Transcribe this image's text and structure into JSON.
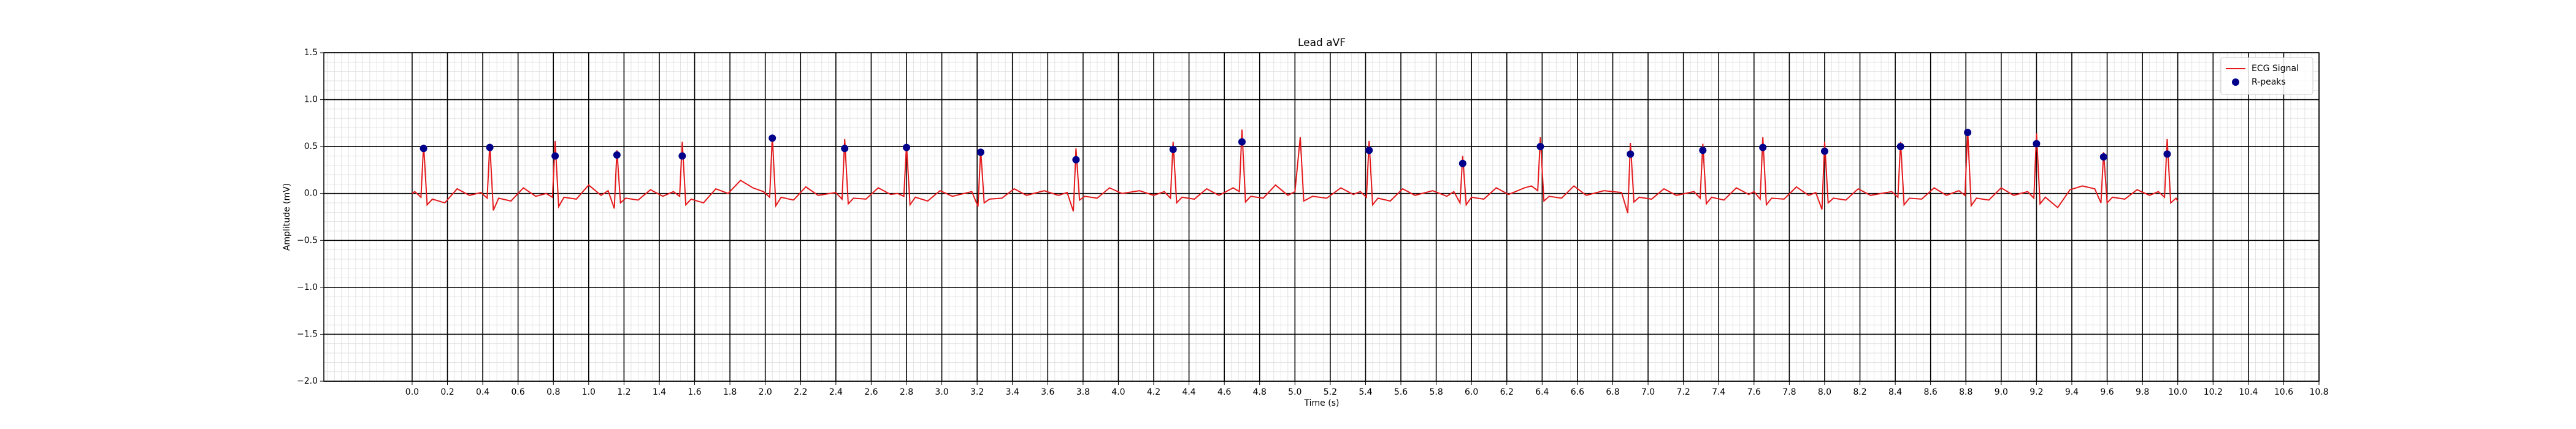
{
  "chart_data": {
    "type": "line",
    "title": "Lead aVF",
    "x_label": "Time (s)",
    "y_label": "Amplitude (mV)",
    "xlim": [
      -0.5,
      10.8
    ],
    "ylim": [
      -2.0,
      1.5
    ],
    "xticks": [
      {
        "value": 0,
        "label": "0.0"
      },
      0.2,
      0.4,
      0.6,
      0.8,
      {
        "value": 1,
        "label": "1.0"
      },
      1.2,
      1.4,
      1.6,
      1.8,
      {
        "value": 2,
        "label": "2.0"
      },
      2.2,
      2.4,
      2.6,
      2.8,
      {
        "value": 3,
        "label": "3.0"
      },
      3.2,
      3.4,
      3.6,
      3.8,
      {
        "value": 4,
        "label": "4.0"
      },
      4.2,
      4.4,
      4.6,
      4.8,
      {
        "value": 5,
        "label": "5.0"
      },
      5.2,
      5.4,
      5.6,
      5.8,
      {
        "value": 6,
        "label": "6.0"
      },
      6.2,
      6.4,
      6.6,
      6.8,
      {
        "value": 7,
        "label": "7.0"
      },
      7.2,
      7.4,
      7.6,
      7.8,
      {
        "value": 8,
        "label": "8.0"
      },
      8.2,
      8.4,
      8.6,
      8.8,
      {
        "value": 9,
        "label": "9.0"
      },
      9.2,
      9.4,
      9.6,
      9.8,
      {
        "value": 10,
        "label": "10.0"
      },
      10.2,
      10.4,
      10.6,
      10.8
    ],
    "yticks": [
      1.5,
      {
        "value": 1,
        "label": "1.0"
      },
      0.5,
      {
        "value": 0,
        "label": "0.0"
      },
      {
        "value": -0.5,
        "label": "−0.5"
      },
      {
        "value": -1,
        "label": "−1.0"
      },
      {
        "value": -1.5,
        "label": "−1.5"
      },
      {
        "value": -2,
        "label": "−2.0"
      }
    ],
    "grid": true,
    "minor_grid": true,
    "legend": "upper right",
    "series": [
      {
        "name": "ECG Signal",
        "color": "#e41a1c",
        "type": "line",
        "x": [
          0,
          0.015,
          0.05,
          0.065,
          0.085,
          0.115,
          0.185,
          0.255,
          0.325,
          0.39,
          0.425,
          0.44,
          0.46,
          0.49,
          0.56,
          0.63,
          0.7,
          0.76,
          0.795,
          0.81,
          0.83,
          0.86,
          0.93,
          1.0,
          1.07,
          1.11,
          1.145,
          1.16,
          1.18,
          1.21,
          1.28,
          1.35,
          1.42,
          1.48,
          1.515,
          1.53,
          1.55,
          1.58,
          1.65,
          1.72,
          1.79,
          1.86,
          1.93,
          1.99,
          2.025,
          2.04,
          2.06,
          2.09,
          2.16,
          2.23,
          2.3,
          2.4,
          2.435,
          2.45,
          2.47,
          2.5,
          2.57,
          2.64,
          2.71,
          2.75,
          2.785,
          2.8,
          2.82,
          2.85,
          2.92,
          2.99,
          3.06,
          3.17,
          3.205,
          3.22,
          3.24,
          3.27,
          3.34,
          3.41,
          3.48,
          3.58,
          3.66,
          3.71,
          3.745,
          3.76,
          3.78,
          3.81,
          3.88,
          3.95,
          4.02,
          4.12,
          4.2,
          4.26,
          4.295,
          4.31,
          4.33,
          4.36,
          4.43,
          4.5,
          4.57,
          4.65,
          4.685,
          4.7,
          4.72,
          4.75,
          4.82,
          4.89,
          4.96,
          5.0,
          5.03,
          5.05,
          5.1,
          5.18,
          5.26,
          5.33,
          5.37,
          5.405,
          5.42,
          5.44,
          5.47,
          5.54,
          5.61,
          5.68,
          5.78,
          5.86,
          5.9,
          5.935,
          5.95,
          5.97,
          6.0,
          6.07,
          6.14,
          6.21,
          6.3,
          6.34,
          6.375,
          6.39,
          6.41,
          6.44,
          6.51,
          6.58,
          6.65,
          6.75,
          6.85,
          6.885,
          6.9,
          6.92,
          6.95,
          7.02,
          7.09,
          7.16,
          7.26,
          7.295,
          7.31,
          7.33,
          7.36,
          7.43,
          7.5,
          7.57,
          7.6,
          7.635,
          7.65,
          7.67,
          7.7,
          7.77,
          7.84,
          7.91,
          7.95,
          7.985,
          8.0,
          8.02,
          8.05,
          8.12,
          8.19,
          8.26,
          8.38,
          8.415,
          8.43,
          8.45,
          8.48,
          8.55,
          8.62,
          8.69,
          8.76,
          8.795,
          8.81,
          8.83,
          8.86,
          8.93,
          9.0,
          9.07,
          9.15,
          9.185,
          9.2,
          9.22,
          9.25,
          9.32,
          9.39,
          9.46,
          9.53,
          9.565,
          9.58,
          9.6,
          9.63,
          9.7,
          9.77,
          9.84,
          9.89,
          9.925,
          9.94,
          9.96,
          9.99,
          10.0
        ],
        "values": [
          0,
          0.02,
          -0.04,
          0.52,
          -0.12,
          -0.06,
          -0.1,
          0.05,
          -0.02,
          0.01,
          -0.05,
          0.53,
          -0.18,
          -0.05,
          -0.08,
          0.06,
          -0.03,
          0.0,
          -0.04,
          0.56,
          -0.14,
          -0.04,
          -0.06,
          0.09,
          -0.02,
          0.03,
          -0.16,
          0.46,
          -0.1,
          -0.05,
          -0.07,
          0.04,
          -0.03,
          0.02,
          -0.03,
          0.55,
          -0.12,
          -0.06,
          -0.1,
          0.05,
          0.0,
          0.14,
          0.06,
          0.02,
          -0.04,
          0.61,
          -0.13,
          -0.04,
          -0.07,
          0.07,
          -0.02,
          0.01,
          -0.06,
          0.58,
          -0.11,
          -0.05,
          -0.06,
          0.06,
          -0.01,
          0.0,
          -0.03,
          0.52,
          -0.12,
          -0.04,
          -0.08,
          0.03,
          -0.03,
          0.02,
          -0.14,
          0.47,
          -0.1,
          -0.06,
          -0.05,
          0.05,
          -0.02,
          0.03,
          -0.02,
          0.01,
          -0.19,
          0.48,
          -0.07,
          -0.03,
          -0.05,
          0.06,
          0.0,
          0.03,
          -0.02,
          0.02,
          -0.05,
          0.55,
          -0.1,
          -0.04,
          -0.06,
          0.05,
          -0.02,
          0.06,
          0.02,
          0.68,
          -0.09,
          -0.03,
          -0.05,
          0.09,
          -0.02,
          0.02,
          0.6,
          -0.08,
          -0.03,
          -0.05,
          0.06,
          -0.01,
          0.02,
          -0.04,
          0.56,
          -0.12,
          -0.05,
          -0.08,
          0.05,
          -0.02,
          0.03,
          -0.03,
          0.02,
          -0.1,
          0.4,
          -0.12,
          -0.04,
          -0.06,
          0.06,
          -0.01,
          0.06,
          0.08,
          0.03,
          0.6,
          -0.08,
          -0.03,
          -0.05,
          0.08,
          -0.02,
          0.03,
          0.01,
          -0.21,
          0.54,
          -0.09,
          -0.04,
          -0.06,
          0.05,
          -0.02,
          0.02,
          -0.05,
          0.53,
          -0.11,
          -0.04,
          -0.07,
          0.06,
          -0.01,
          0.02,
          -0.06,
          0.6,
          -0.12,
          -0.05,
          -0.06,
          0.07,
          -0.02,
          0.01,
          -0.17,
          0.55,
          -0.1,
          -0.05,
          -0.07,
          0.05,
          -0.02,
          0.02,
          -0.04,
          0.55,
          -0.12,
          -0.05,
          -0.06,
          0.06,
          -0.02,
          0.03,
          -0.02,
          0.68,
          -0.13,
          -0.05,
          -0.07,
          0.06,
          -0.02,
          0.02,
          -0.05,
          0.64,
          -0.11,
          -0.04,
          -0.15,
          0.04,
          0.08,
          0.05,
          -0.1,
          0.44,
          -0.1,
          -0.04,
          -0.06,
          0.04,
          -0.02,
          0.02,
          -0.04,
          0.58,
          -0.1,
          -0.05,
          -0.08
        ]
      },
      {
        "name": "R-peaks",
        "color": "#00008b",
        "type": "scatter",
        "x": [
          0.065,
          0.44,
          0.81,
          1.16,
          1.53,
          2.04,
          2.45,
          2.8,
          3.22,
          3.76,
          4.31,
          4.7,
          5.42,
          5.95,
          6.39,
          6.9,
          7.31,
          7.65,
          8.0,
          8.43,
          8.81,
          9.2,
          9.58,
          9.94
        ],
        "values": [
          0.48,
          0.49,
          0.4,
          0.41,
          0.4,
          0.59,
          0.48,
          0.49,
          0.44,
          0.36,
          0.47,
          0.55,
          0.46,
          0.32,
          0.5,
          0.42,
          0.46,
          0.49,
          0.45,
          0.5,
          0.65,
          0.53,
          0.39,
          0.42
        ]
      }
    ]
  }
}
